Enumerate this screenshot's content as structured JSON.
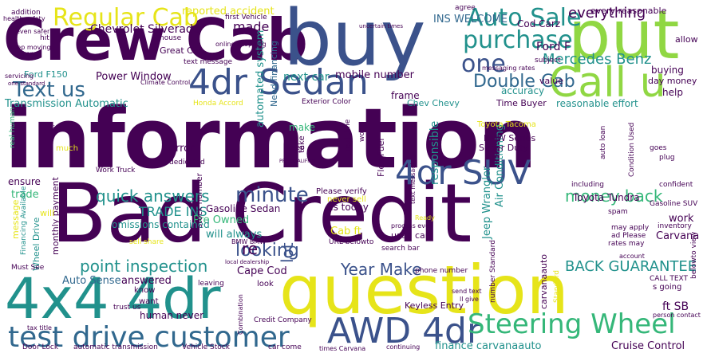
{
  "colors": {
    "dark_purple": "#440154",
    "indigo": "#3b528b",
    "blue": "#31688e",
    "teal": "#21918c",
    "green": "#35b779",
    "lime": "#90d743",
    "yellow": "#e6e419"
  },
  "words": {
    "information": "information",
    "bad_credit": "Bad Credit",
    "crew_cab": "Crew Cab",
    "buy": "buy",
    "put": "put",
    "question": "question",
    "four_by_four": "4x4 4dr",
    "call_u": "Call u",
    "four_dr_sedan": "4dr Sedan",
    "four_dr_suv": "4dr SUV",
    "awd_4dr": "AWD 4dr",
    "steering_wheel": "Steering Wheel",
    "test_drive_customer": "test drive customer",
    "regular_cab": "Regular Cab",
    "auto_sale": "Auto Sale",
    "purchase": "purchase",
    "one": "one",
    "text_us": "Text us",
    "minute": "minute",
    "mercedes_benz": "Mercedes Benz",
    "double_cab": "Double Cab",
    "quick_answers": "quick answers",
    "money_back": "money back",
    "looking": "looking",
    "point_inspection": "point inspection",
    "year_make": "Year Make",
    "back_guarantee": "BACK GUARANTEE",
    "everything": "everything",
    "trade_ins": "TRADE INS",
    "lot": "lot",
    "re": "re",
    "ford_f": "Ford F",
    "chevrolet_silverado": "Chevrolet Silverado",
    "made": "made",
    "power_window": "Power Window",
    "transmission_automatic": "Transmission Automatic",
    "reported_accident": "reported accident",
    "ins_welcome": "INS WELCOME",
    "next_car": "next car",
    "mobile_number": "mobile number",
    "great_car": "Great Car",
    "reasonable_effort": "reasonable effort",
    "will_always": "will always",
    "pre_owned": "Pre Owned",
    "gasoline_sedan": "Gasoline Sedan",
    "omissions_contained": "omissions contained",
    "cape_cod": "Cape Cod",
    "auto_sense": "Auto Sense",
    "answered": "answered",
    "human_never": "human never",
    "keyless_entry": "Keyless Entry",
    "finance_carvanaauto": "finance carvanaauto",
    "cruise_control": "Cruise Control",
    "ft_sb": "ft SB",
    "carvana": "Carvana",
    "work": "work",
    "toyota_tundra": "Toyota Tundra",
    "jeep_wrangler": "Jeep Wrangler",
    "air_conditioning": "Air Conditioning",
    "responsible": "responsible",
    "flex_fuel": "Flex Fuel",
    "error": "error",
    "make": "make",
    "ensure": "ensure",
    "trade": "trade",
    "monthly_payment": "monthly payment",
    "wheel_drive": "Wheel Drive",
    "message": "message",
    "automated_system": "automated system",
    "need_financing": "Need financing",
    "every_reasonable": "every reasonable",
    "cod_carz": "Cod Carz",
    "time_buyer": "Time Buyer",
    "accuracy": "accuracy",
    "frame": "frame",
    "value": "value",
    "help": "help",
    "allow": "allow",
    "buying": "buying",
    "day_money": "day money",
    "us_today": "us today",
    "used_car": "used car",
    "cab_ft": "Cab ft",
    "bmw_series": "BMW Series",
    "super_duty": "Super Duty",
    "toyota_tacoma": "Toyota Tacoma",
    "chev_chevy": "Chev Chevy",
    "ford_f150": "Ford F150",
    "addition": "addition",
    "health_safety": "health safety",
    "even_safer": "even safer",
    "hit": "hit",
    "keep_moving": "keep moving",
    "old_one": "old one",
    "first_vehicle": "first Vehicle",
    "agree": "agree",
    "house": "house",
    "online_shopping": "online shopping",
    "text_message": "text message",
    "subject": "subject",
    "climate_control": "Climate Control",
    "honda_accord": "Honda Accord",
    "exterior_color": "Exterior Color",
    "list": "list",
    "much": "much",
    "real_human": "real human",
    "dedicated": "dedicated",
    "please_verify": "Please verify",
    "never_sell": "never sell",
    "will": "will",
    "gasoline_suv": "Gasoline SUV",
    "spam": "spam",
    "inventory": "inventory",
    "may_apply": "may apply",
    "ad_please": "ad Please",
    "rates_may": "rates may",
    "call_text": "CALL TEXT",
    "look": "look",
    "know": "know",
    "want": "want",
    "trust_us": "trust us",
    "credit_company": "Credit Company",
    "car_come": "car come",
    "times_carvana": "times Carvana",
    "vehicle_stock": "Vehicle Stock",
    "automatic_transmission": "automatic transmission",
    "door_lock": "Door Lock",
    "tax_title": "tax title",
    "must_see": "Must See",
    "stock_number": "stock number",
    "sell_share": "sell share",
    "financing_available": "Financing Available",
    "work_truck": "Work Truck",
    "url_belowto": "URL belowto",
    "search_bar": "search bar",
    "phone_number": "phone number",
    "bmw_bmw": "BMW BMW",
    "local_dealership": "local dealership",
    "leaving": "leaving",
    "standard": "Standard",
    "number_standard": "number Standard",
    "carvanaauto": "carvanaauto",
    "goes": "goes",
    "plug": "plug",
    "auto_loan": "auto loan",
    "condition_used": "Condition Used",
    "servicing": "servicing",
    "one_standard": "one standard",
    "real_time": "real time",
    "keep": "keep",
    "take": "take",
    "wont": "won t",
    "pre_qualified": "PRE QUALIFIED",
    "s_going": "s going",
    "person_contact": "person contact",
    "belowto_view": "belowto view",
    "confident": "confident",
    "including": "including",
    "ready": "Ready",
    "process_even": "process even",
    "account": "account",
    "text_messaging": "text messaging",
    "combination": "Combination",
    "continuing": "continuing",
    "send_text": "send text",
    "ll_give": "ll give",
    "uncertain_times": "uncertain times",
    "messaging_rates": "messaging rates"
  }
}
